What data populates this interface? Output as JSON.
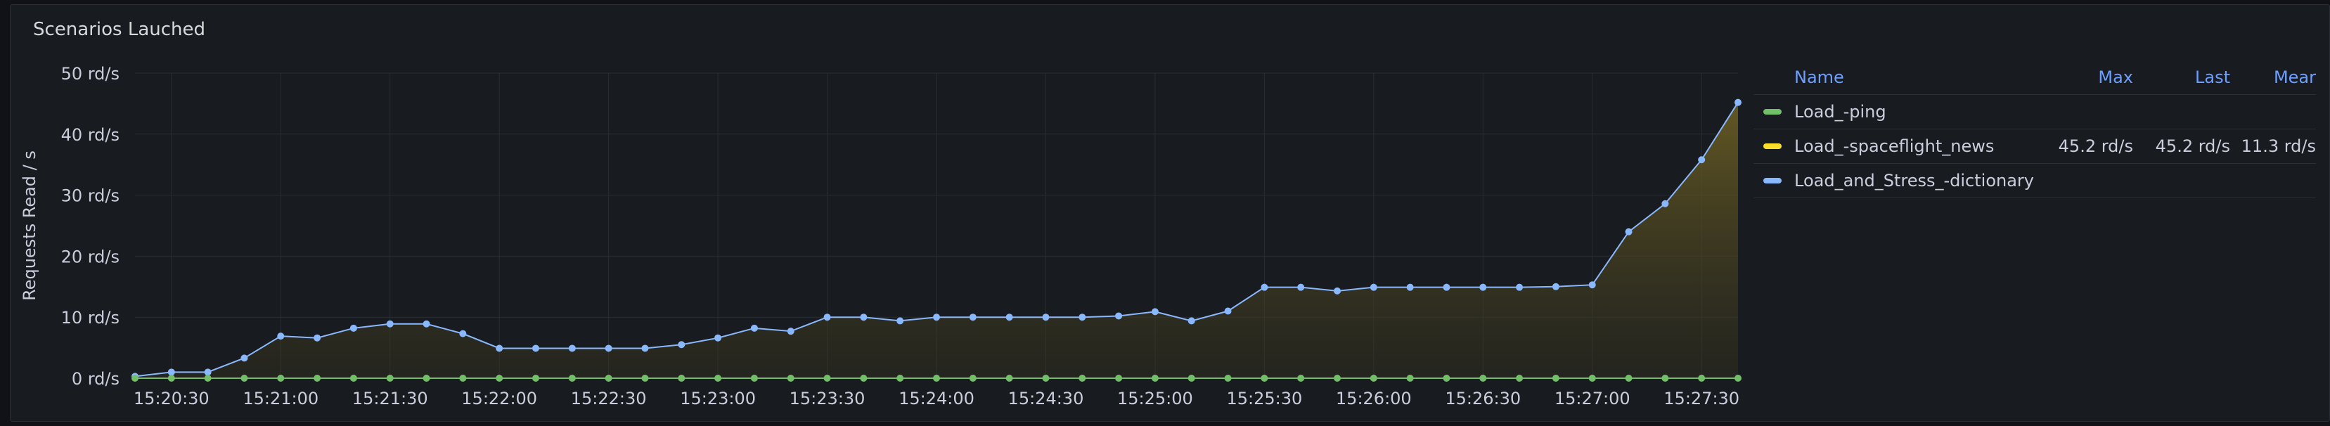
{
  "panel": {
    "title": "Scenarios Lauched"
  },
  "legend": {
    "headers": {
      "name": "Name",
      "max": "Max",
      "last": "Last",
      "mean": "Mear"
    },
    "rows": [
      {
        "name": "Load_-ping",
        "color": "#73bf69",
        "max": "",
        "last": "",
        "mean": ""
      },
      {
        "name": "Load_-spaceflight_news",
        "color": "#fade2a",
        "max": "45.2 rd/s",
        "last": "45.2 rd/s",
        "mean": "11.3 rd/s"
      },
      {
        "name": "Load_and_Stress_-dictionary",
        "color": "#8ab8ff",
        "max": "",
        "last": "",
        "mean": ""
      }
    ]
  },
  "chart_data": {
    "type": "line",
    "ylabel": "Requests Read / s",
    "ylim": [
      0,
      50
    ],
    "yticks": [
      "0 rd/s",
      "10 rd/s",
      "20 rd/s",
      "30 rd/s",
      "40 rd/s",
      "50 rd/s"
    ],
    "xlim": [
      "15:20:20",
      "15:27:40"
    ],
    "xticks": [
      "15:20:30",
      "15:21:00",
      "15:21:30",
      "15:22:00",
      "15:22:30",
      "15:23:00",
      "15:23:30",
      "15:24:00",
      "15:24:30",
      "15:25:00",
      "15:25:30",
      "15:26:00",
      "15:26:30",
      "15:27:00",
      "15:27:30"
    ],
    "x": [
      "15:20:20",
      "15:20:30",
      "15:20:40",
      "15:20:50",
      "15:21:00",
      "15:21:10",
      "15:21:20",
      "15:21:30",
      "15:21:40",
      "15:21:50",
      "15:22:00",
      "15:22:10",
      "15:22:20",
      "15:22:30",
      "15:22:40",
      "15:22:50",
      "15:23:00",
      "15:23:10",
      "15:23:20",
      "15:23:30",
      "15:23:40",
      "15:23:50",
      "15:24:00",
      "15:24:10",
      "15:24:20",
      "15:24:30",
      "15:24:40",
      "15:24:50",
      "15:25:00",
      "15:25:10",
      "15:25:20",
      "15:25:30",
      "15:25:40",
      "15:25:50",
      "15:26:00",
      "15:26:10",
      "15:26:20",
      "15:26:30",
      "15:26:40",
      "15:26:50",
      "15:27:00",
      "15:27:10",
      "15:27:20",
      "15:27:30",
      "15:27:40"
    ],
    "series": [
      {
        "name": "Load_-ping",
        "color": "#73bf69",
        "fill": false,
        "values": [
          0,
          0,
          0,
          0,
          0,
          0,
          0,
          0,
          0,
          0,
          0,
          0,
          0,
          0,
          0,
          0,
          0,
          0,
          0,
          0,
          0,
          0,
          0,
          0,
          0,
          0,
          0,
          0,
          0,
          0,
          0,
          0,
          0,
          0,
          0,
          0,
          0,
          0,
          0,
          0,
          0,
          0,
          0,
          0,
          0
        ]
      },
      {
        "name": "Load_and_Stress_-dictionary",
        "color": "#8ab8ff",
        "fill": true,
        "values": [
          0.3,
          1,
          1,
          3.3,
          6.9,
          6.6,
          8.2,
          8.9,
          8.9,
          7.3,
          4.9,
          4.9,
          4.9,
          4.9,
          4.9,
          5.5,
          6.6,
          8.2,
          7.7,
          10,
          10,
          9.4,
          10,
          10,
          10,
          10,
          10,
          10.2,
          10.9,
          9.4,
          11,
          14.9,
          14.9,
          14.3,
          14.9,
          14.9,
          14.9,
          14.9,
          14.9,
          15,
          15.3,
          24,
          28.6,
          35.8,
          45.2
        ]
      }
    ],
    "grid": true
  }
}
